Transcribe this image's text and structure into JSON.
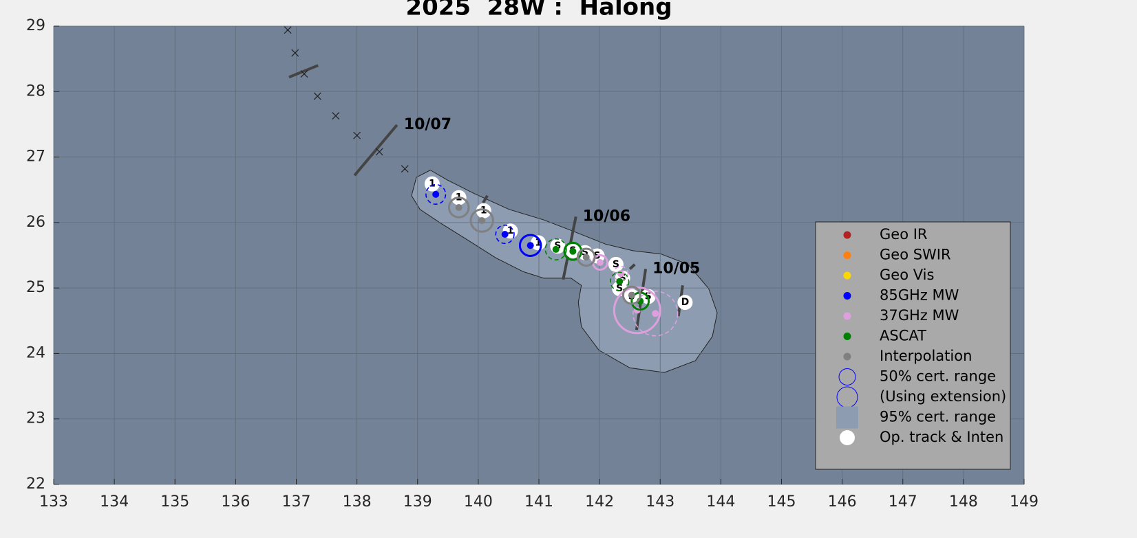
{
  "chart_data": {
    "type": "track",
    "title": "2025  28W :  Halong",
    "xlim": [
      133,
      149
    ],
    "ylim": [
      22,
      29
    ],
    "xticks": [
      133,
      134,
      135,
      136,
      137,
      138,
      139,
      140,
      141,
      142,
      143,
      144,
      145,
      146,
      147,
      148,
      149
    ],
    "yticks": [
      22,
      23,
      24,
      25,
      26,
      27,
      28,
      29
    ],
    "grid": true,
    "legend": "right",
    "background": "#738296",
    "series": [
      {
        "name": "Geo IR",
        "color": "#b22222",
        "x": [],
        "y": [],
        "sizes": [],
        "dashed": []
      },
      {
        "name": "Geo SWIR",
        "color": "#ff7f0e",
        "x": [],
        "y": [],
        "sizes": [],
        "dashed": []
      },
      {
        "name": "Geo Vis",
        "color": "#ffd700",
        "x": [],
        "y": [],
        "sizes": [],
        "dashed": []
      },
      {
        "name": "85GHz MW",
        "color": "#0000ff",
        "x": [
          139.3,
          140.44,
          140.86
        ],
        "y": [
          26.43,
          25.82,
          25.65
        ],
        "sizes": [
          0.15,
          0.14,
          0.16
        ],
        "dashed": [
          true,
          true,
          false
        ]
      },
      {
        "name": "37GHz MW",
        "color": "#dda0dd",
        "x": [
          142.01,
          142.35,
          142.62,
          142.92
        ],
        "y": [
          25.39,
          25.22,
          24.66,
          24.61
        ],
        "sizes": [
          0.11,
          0.11,
          0.35,
          0.34
        ],
        "dashed": [
          false,
          true,
          false,
          true
        ]
      },
      {
        "name": "ASCAT",
        "color": "#008000",
        "x": [
          141.28,
          141.56,
          142.33,
          142.67
        ],
        "y": [
          25.59,
          25.56,
          25.1,
          24.8
        ],
        "sizes": [
          0.16,
          0.13,
          0.14,
          0.13
        ],
        "dashed": [
          true,
          false,
          true,
          false
        ]
      },
      {
        "name": "Interpolation",
        "color": "#808080",
        "x": [
          139.68,
          140.06,
          141.78,
          142.53
        ],
        "y": [
          26.23,
          26.03,
          25.47,
          24.89
        ],
        "sizes": [
          0.15,
          0.17,
          0.13,
          0.13
        ],
        "dashed": [
          false,
          false,
          false,
          false
        ]
      }
    ],
    "cert_50": {
      "name": "50% cert. range",
      "color": "#0000ff"
    },
    "cert_ext": {
      "name": "(Using extension)",
      "color": "#0000ff"
    },
    "region": {
      "name": "95% cert. range",
      "color": "#8d9cb1",
      "x": [
        139.21,
        139.49,
        139.94,
        140.51,
        141.08,
        141.53,
        142.1,
        142.55,
        143.01,
        143.46,
        143.8,
        143.94,
        143.86,
        143.58,
        143.07,
        142.5,
        141.99,
        141.7,
        141.65,
        141.7,
        141.53,
        141.08,
        140.74,
        140.29,
        139.83,
        139.38,
        139.04,
        138.9,
        138.98
      ],
      "y": [
        26.8,
        26.65,
        26.44,
        26.2,
        26.04,
        25.88,
        25.67,
        25.57,
        25.52,
        25.36,
        24.99,
        24.62,
        24.26,
        23.89,
        23.71,
        23.78,
        24.05,
        24.41,
        24.78,
        25.04,
        25.15,
        25.15,
        25.25,
        25.46,
        25.73,
        25.99,
        26.2,
        26.41,
        26.69
      ]
    },
    "op_track": {
      "name": "Op. track & Inten",
      "color": "#ffffff",
      "x": [
        139.24,
        139.68,
        140.09,
        140.53,
        140.99,
        141.31,
        141.56,
        141.76,
        141.96,
        142.27,
        142.38,
        142.33,
        142.53,
        142.8,
        143.41
      ],
      "y": [
        26.59,
        26.38,
        26.18,
        25.87,
        25.69,
        25.64,
        25.57,
        25.54,
        25.49,
        25.36,
        25.15,
        24.99,
        24.87,
        24.87,
        24.78
      ],
      "labels": [
        "1",
        "1",
        "1",
        "1",
        "1",
        "S",
        "S",
        "S",
        "S",
        "S",
        "S",
        "S",
        "S",
        "S",
        "D"
      ]
    },
    "forecast": {
      "x": [
        136.86,
        136.98,
        137.13,
        137.35,
        137.65,
        138.0,
        138.37,
        138.79
      ],
      "y": [
        28.94,
        28.59,
        28.27,
        27.93,
        27.63,
        27.33,
        27.08,
        26.82
      ]
    },
    "day_marks": [
      {
        "label": "10/07",
        "x": [
          137.96,
          138.66
        ],
        "y": [
          26.72,
          27.49
        ]
      },
      {
        "label": "10/06",
        "x": [
          141.4,
          141.61
        ],
        "y": [
          25.13,
          26.09
        ]
      },
      {
        "label": "10/05",
        "x": [
          142.61,
          142.76
        ],
        "y": [
          24.36,
          25.29
        ]
      },
      {
        "label": null,
        "x": [
          136.88,
          137.36
        ],
        "y": [
          28.22,
          28.4
        ]
      },
      {
        "label": null,
        "x": [
          140.08,
          140.15
        ],
        "y": [
          26.3,
          26.41
        ]
      },
      {
        "label": null,
        "x": [
          142.5,
          142.58
        ],
        "y": [
          25.29,
          25.36
        ]
      },
      {
        "label": null,
        "x": [
          143.3,
          143.37
        ],
        "y": [
          24.57,
          25.04
        ]
      }
    ]
  }
}
